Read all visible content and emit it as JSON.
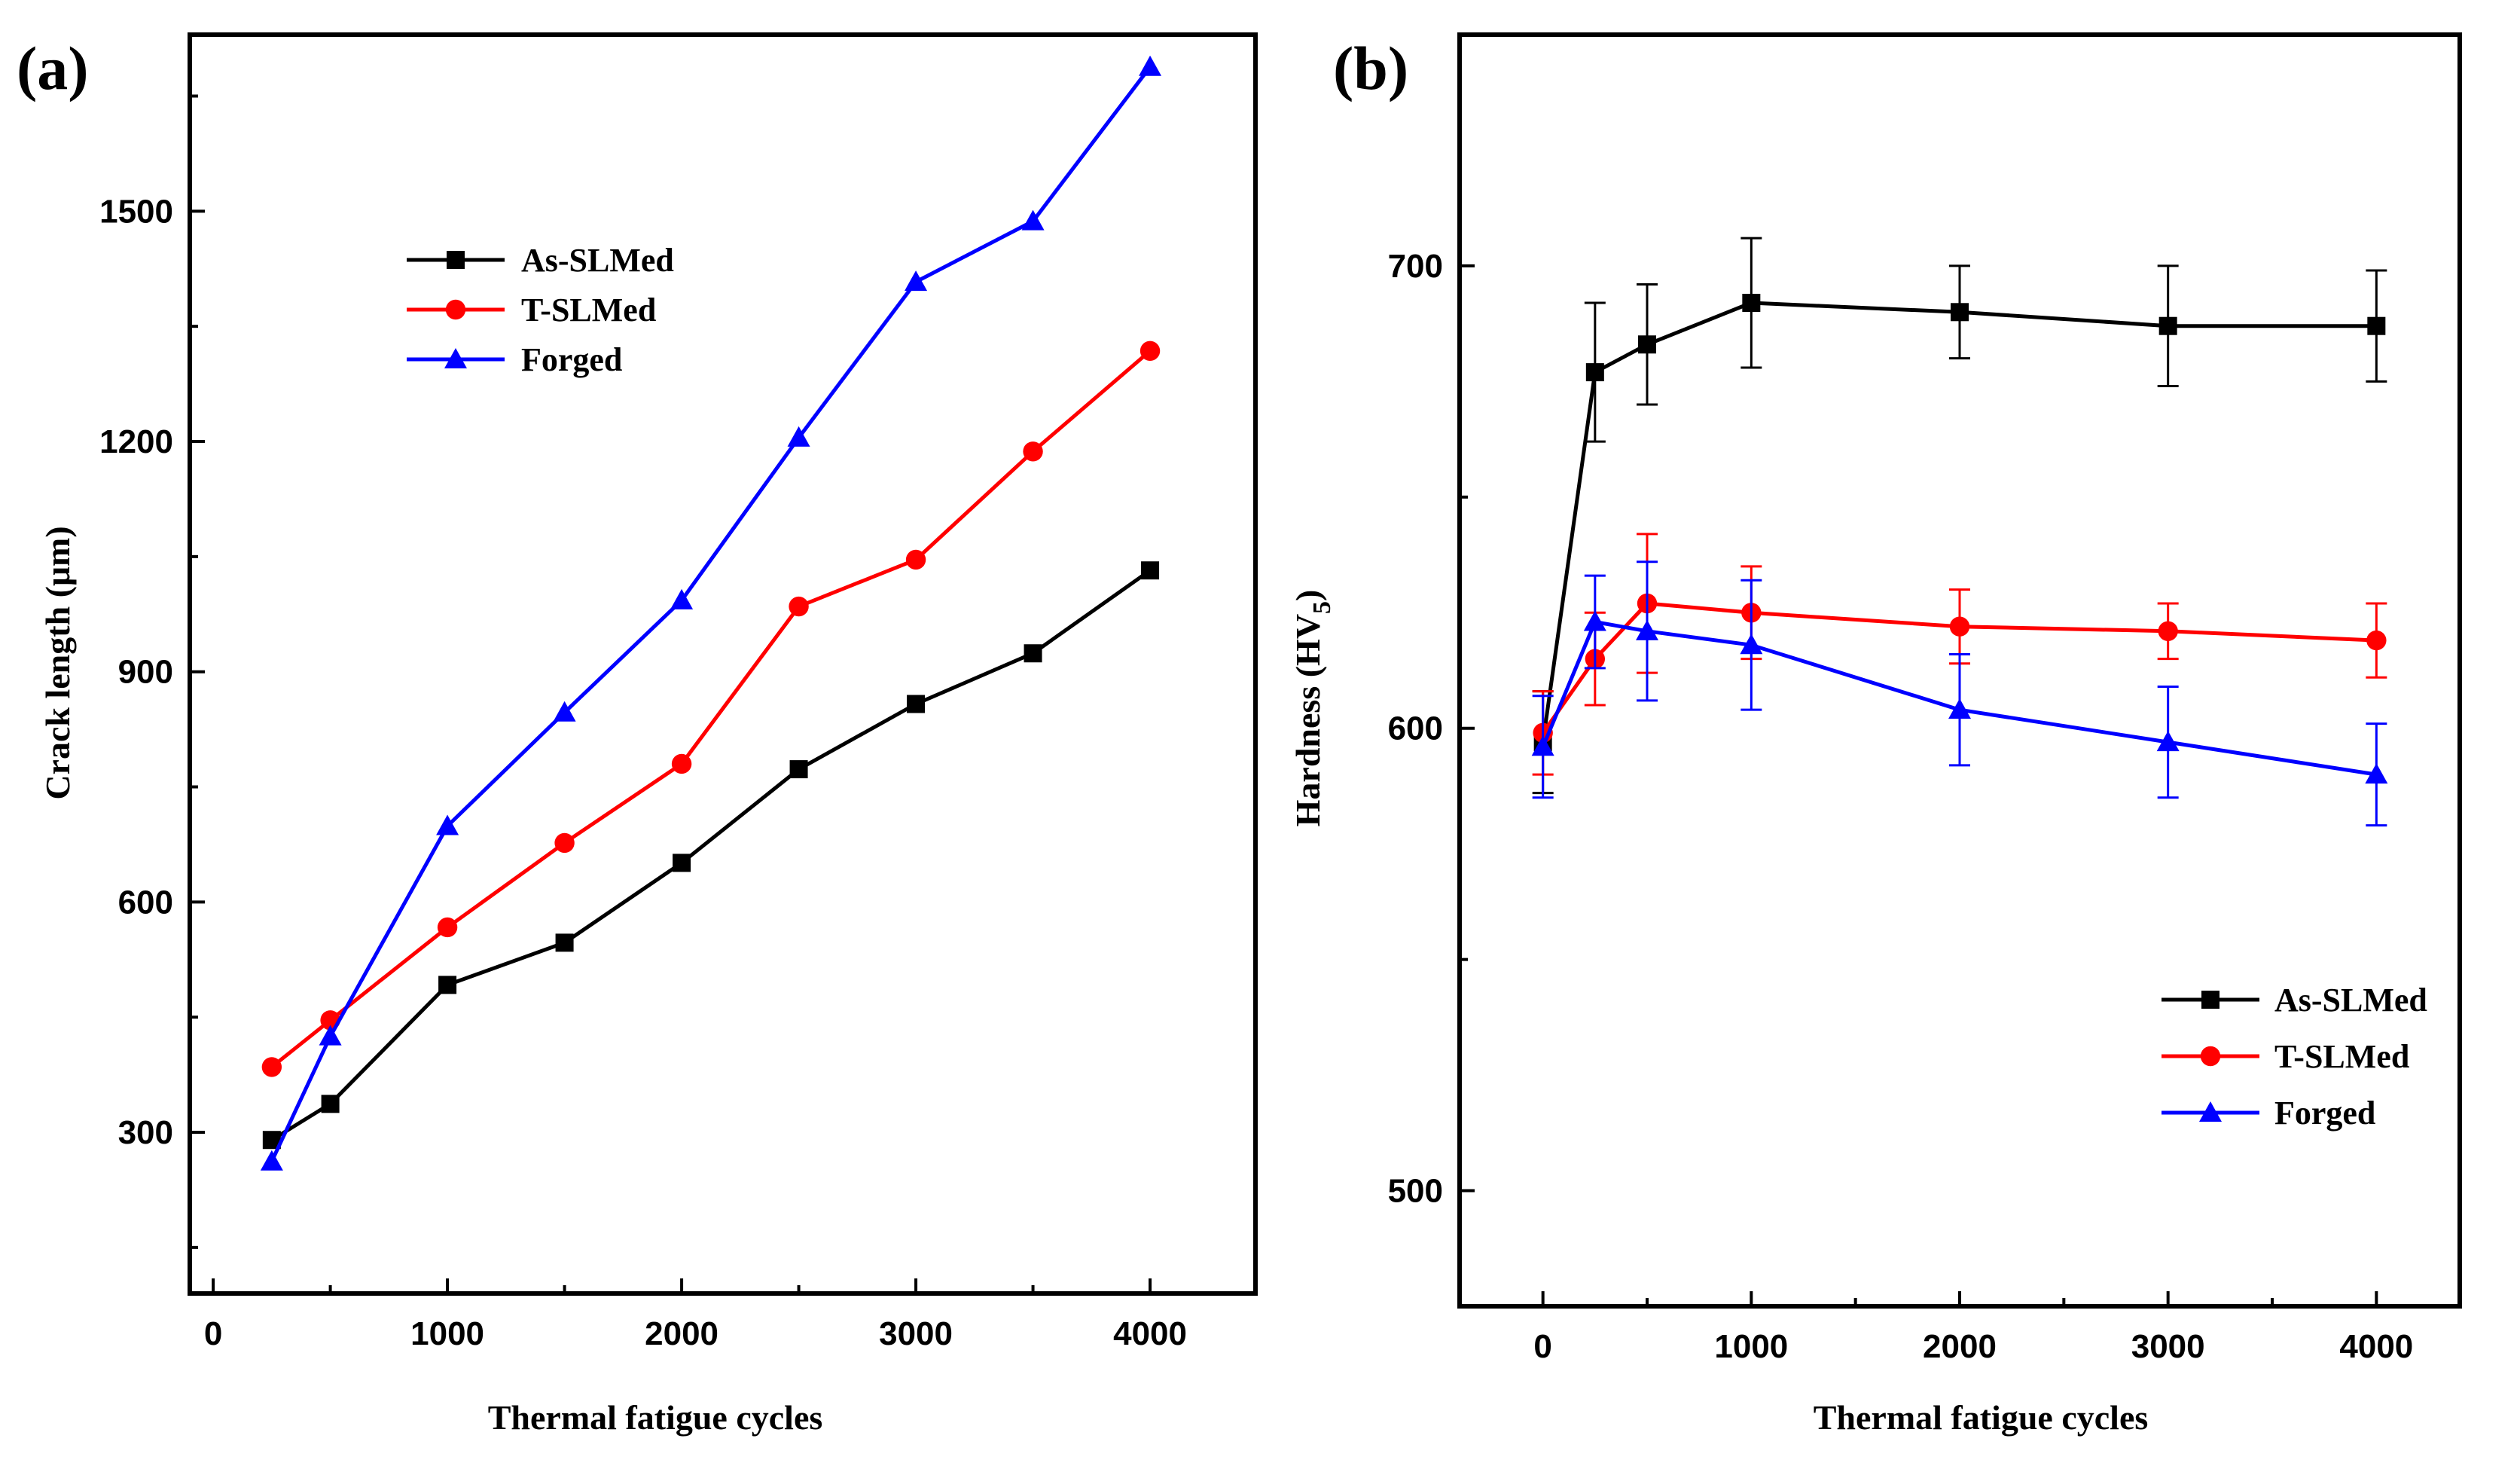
{
  "chart_data": [
    {
      "panel": "(a)",
      "type": "line",
      "title": "",
      "xlabel": "Thermal fatigue cycles",
      "ylabel": "Crack length (μm)",
      "xlim": [
        -100,
        4450
      ],
      "ylim": [
        90,
        1730
      ],
      "xticks": [
        0,
        1000,
        2000,
        3000,
        4000
      ],
      "xtick_labels": [
        "0",
        "1000",
        "2000",
        "3000",
        "4000"
      ],
      "yticks": [
        300,
        600,
        900,
        1200,
        1500
      ],
      "ytick_labels": [
        "300",
        "600",
        "900",
        "1200",
        "1500"
      ],
      "grid": false,
      "legend_position": "upper-left",
      "x": [
        250,
        500,
        1000,
        1500,
        2000,
        2500,
        3000,
        3500,
        4000
      ],
      "series": [
        {
          "name": "As-SLMed",
          "color": "#000000",
          "marker": "square",
          "values": [
            290,
            337,
            492,
            547,
            651,
            773,
            858,
            924,
            1032
          ]
        },
        {
          "name": "T-SLMed",
          "color": "#ff0000",
          "marker": "circle",
          "values": [
            385,
            446,
            567,
            677,
            780,
            985,
            1046,
            1187,
            1318
          ]
        },
        {
          "name": "Forged",
          "color": "#0000ff",
          "marker": "triangle",
          "values": [
            262,
            425,
            699,
            847,
            993,
            1205,
            1408,
            1487,
            1688
          ]
        }
      ]
    },
    {
      "panel": "(b)",
      "type": "line",
      "title": "",
      "xlabel": "Thermal fatigue cycles",
      "ylabel": "Hardness (HV5)",
      "ylabel_main": "Hardness (HV",
      "ylabel_sub": "5",
      "ylabel_end": ")",
      "xlim": [
        -400,
        4400
      ],
      "ylim": [
        475,
        750
      ],
      "xticks": [
        0,
        1000,
        2000,
        3000,
        4000
      ],
      "xtick_labels": [
        "0",
        "1000",
        "2000",
        "3000",
        "4000"
      ],
      "yticks": [
        500,
        600,
        700
      ],
      "ytick_labels": [
        "500",
        "600",
        "700"
      ],
      "grid": false,
      "legend_position": "lower-right",
      "x": [
        0,
        250,
        500,
        1000,
        2000,
        3000,
        4000
      ],
      "series": [
        {
          "name": "As-SLMed",
          "color": "#000000",
          "marker": "square",
          "values": [
            597,
            677,
            683,
            692,
            690,
            687,
            687
          ],
          "errors": [
            11,
            15,
            13,
            14,
            10,
            13,
            12
          ]
        },
        {
          "name": "T-SLMed",
          "color": "#ff0000",
          "marker": "circle",
          "values": [
            599,
            615,
            627,
            625,
            622,
            621,
            619
          ],
          "errors": [
            9,
            10,
            15,
            10,
            8,
            6,
            8
          ]
        },
        {
          "name": "Forged",
          "color": "#0000ff",
          "marker": "triangle",
          "values": [
            596,
            623,
            621,
            618,
            604,
            597,
            590
          ],
          "errors": [
            11,
            10,
            15,
            14,
            12,
            12,
            11
          ]
        }
      ]
    }
  ]
}
